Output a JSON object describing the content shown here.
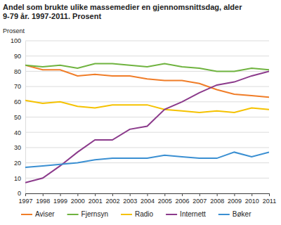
{
  "chart_data": {
    "type": "line",
    "title": "Andel som brukte ulike massemedier en gjennomsnittsdag, alder 9-79 år. 1997-2011. Prosent",
    "y_label": "Prosent",
    "categories": [
      "1997",
      "1998",
      "1999",
      "2000",
      "2001",
      "2002",
      "2003",
      "2004",
      "2005",
      "2006",
      "2007",
      "2008",
      "2009",
      "2010",
      "2011"
    ],
    "series": [
      {
        "name": "Aviser",
        "color": "#f07d28",
        "values": [
          84,
          81,
          81,
          77,
          78,
          77,
          77,
          75,
          74,
          74,
          72,
          68,
          65,
          64,
          63
        ]
      },
      {
        "name": "Fjernsyn",
        "color": "#6fb33f",
        "values": [
          84,
          83,
          84,
          82,
          85,
          85,
          84,
          83,
          85,
          83,
          82,
          80,
          80,
          82,
          81
        ]
      },
      {
        "name": "Radio",
        "color": "#f5c200",
        "values": [
          61,
          59,
          60,
          57,
          56,
          58,
          58,
          58,
          55,
          54,
          53,
          54,
          53,
          56,
          55
        ]
      },
      {
        "name": "Internett",
        "color": "#8b3a8b",
        "values": [
          7,
          10,
          18,
          27,
          35,
          35,
          42,
          44,
          55,
          60,
          66,
          71,
          73,
          77,
          80
        ]
      },
      {
        "name": "Bøker",
        "color": "#3a8fd2",
        "values": [
          17,
          18,
          19,
          20,
          22,
          23,
          23,
          23,
          25,
          24,
          23,
          23,
          27,
          24,
          27
        ]
      }
    ],
    "ylim": [
      0,
      100
    ],
    "yticks": [
      0,
      10,
      20,
      30,
      40,
      50,
      60,
      70,
      80,
      90,
      100
    ],
    "grid": true,
    "legend": "bottom"
  }
}
